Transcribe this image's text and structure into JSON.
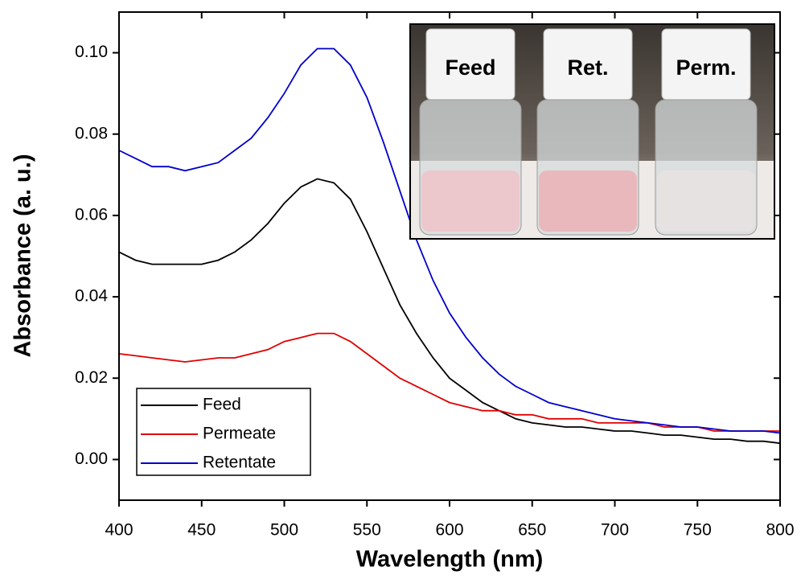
{
  "chart_data": {
    "type": "line",
    "x_label": "Wavelength (nm)",
    "y_label": "Absorbance (a. u.)",
    "annotations": [
      "Feed",
      "Ret.",
      "Perm."
    ],
    "x": [
      400,
      410,
      420,
      430,
      440,
      450,
      460,
      470,
      480,
      490,
      500,
      510,
      520,
      530,
      540,
      550,
      560,
      570,
      580,
      590,
      600,
      610,
      620,
      630,
      640,
      650,
      660,
      670,
      680,
      690,
      700,
      710,
      720,
      730,
      740,
      750,
      760,
      770,
      780,
      790,
      800
    ],
    "series": [
      {
        "name": "Feed",
        "color": "#000000",
        "values": [
          0.051,
          0.049,
          0.048,
          0.048,
          0.048,
          0.048,
          0.049,
          0.051,
          0.054,
          0.058,
          0.063,
          0.067,
          0.069,
          0.068,
          0.064,
          0.056,
          0.047,
          0.038,
          0.031,
          0.025,
          0.02,
          0.017,
          0.014,
          0.012,
          0.01,
          0.009,
          0.0085,
          0.008,
          0.008,
          0.0075,
          0.007,
          0.007,
          0.0065,
          0.006,
          0.006,
          0.0055,
          0.005,
          0.005,
          0.0045,
          0.0045,
          0.004
        ]
      },
      {
        "name": "Permeate",
        "color": "#e00000",
        "values": [
          0.026,
          0.0255,
          0.025,
          0.0245,
          0.024,
          0.0245,
          0.025,
          0.025,
          0.026,
          0.027,
          0.029,
          0.03,
          0.031,
          0.031,
          0.029,
          0.026,
          0.023,
          0.02,
          0.018,
          0.016,
          0.014,
          0.013,
          0.012,
          0.012,
          0.011,
          0.011,
          0.01,
          0.01,
          0.01,
          0.009,
          0.009,
          0.009,
          0.009,
          0.008,
          0.008,
          0.008,
          0.007,
          0.007,
          0.007,
          0.007,
          0.007
        ]
      },
      {
        "name": "Retentate",
        "color": "#0000cc",
        "values": [
          0.076,
          0.074,
          0.072,
          0.072,
          0.071,
          0.072,
          0.073,
          0.076,
          0.079,
          0.084,
          0.09,
          0.097,
          0.101,
          0.101,
          0.097,
          0.089,
          0.078,
          0.066,
          0.054,
          0.044,
          0.036,
          0.03,
          0.025,
          0.021,
          0.018,
          0.016,
          0.014,
          0.013,
          0.012,
          0.011,
          0.01,
          0.0095,
          0.009,
          0.0085,
          0.008,
          0.008,
          0.0075,
          0.007,
          0.007,
          0.007,
          0.0065
        ]
      }
    ],
    "xlim": [
      400,
      800
    ],
    "xticks": [
      400,
      450,
      500,
      550,
      600,
      650,
      700,
      750,
      800
    ],
    "ylim": [
      -0.01,
      0.11
    ],
    "yticks": [
      {
        "value": 0,
        "label": "0.00"
      },
      0.02,
      0.04,
      0.06,
      0.08,
      {
        "value": 0.1,
        "label": "0.10"
      }
    ],
    "grid": false,
    "legend": "lower left"
  }
}
